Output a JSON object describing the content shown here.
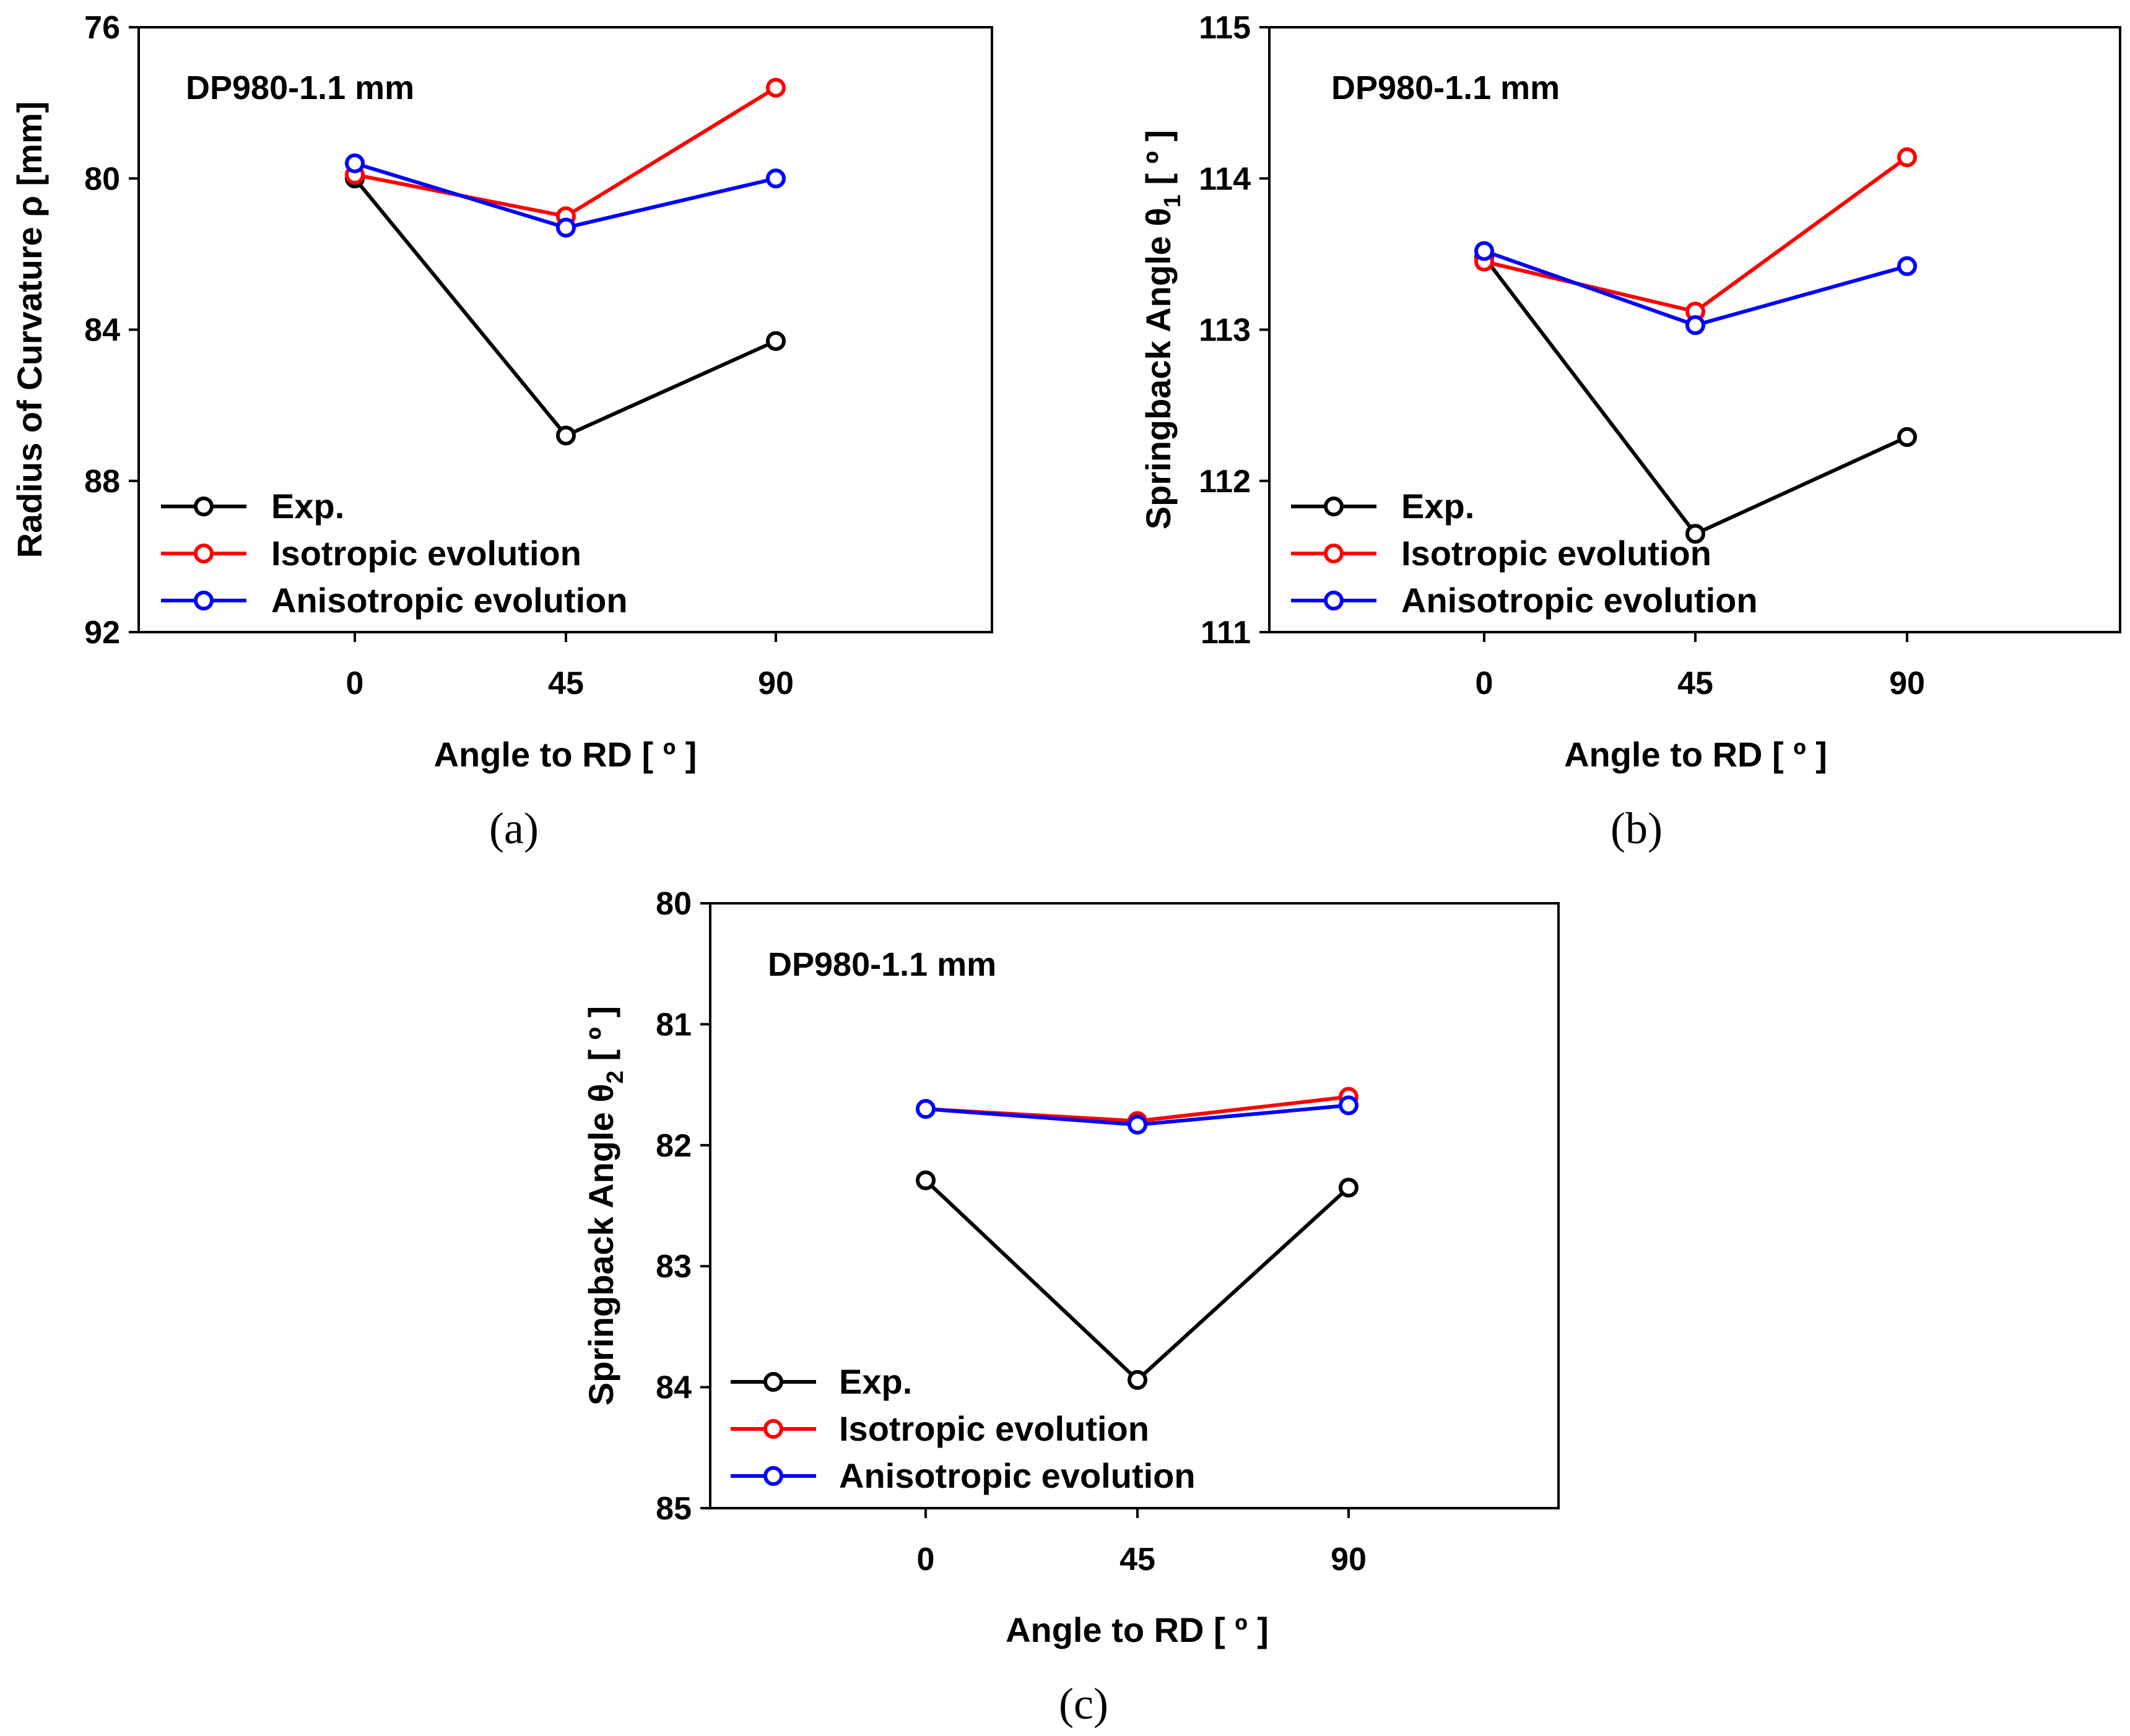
{
  "chart_data": [
    {
      "id": "a",
      "type": "line",
      "caption": "(a)",
      "title": "DP980-1.1 mm",
      "xlabel": "Angle to RD [ º ]",
      "ylabel": "Radius of Curvature ρ [mm]",
      "categories": [
        "0",
        "45",
        "90"
      ],
      "ylim": [
        76,
        92
      ],
      "yticks": [
        "76",
        "80",
        "84",
        "88",
        "92"
      ],
      "y_inverted": true,
      "series": [
        {
          "name": "Exp.",
          "color": "#000000",
          "values": [
            80.0,
            86.8,
            84.3
          ]
        },
        {
          "name": "Isotropic evolution",
          "color": "#ff0000",
          "values": [
            79.9,
            81.0,
            77.6
          ]
        },
        {
          "name": "Anisotropic evolution",
          "color": "#0000ff",
          "values": [
            79.6,
            81.3,
            80.0
          ]
        }
      ]
    },
    {
      "id": "b",
      "type": "line",
      "caption": "(b)",
      "title": "DP980-1.1 mm",
      "xlabel": "Angle to RD [ º ]",
      "ylabel": "Springback Angle θ",
      "ylabel_sub": "1",
      "ylabel_suffix": " [ º ]",
      "categories": [
        "0",
        "45",
        "90"
      ],
      "ylim": [
        111,
        115
      ],
      "yticks": [
        "115",
        "114",
        "113",
        "112",
        "111"
      ],
      "y_inverted": false,
      "series": [
        {
          "name": "Exp.",
          "color": "#000000",
          "values": [
            113.48,
            111.65,
            112.29
          ]
        },
        {
          "name": "Isotropic evolution",
          "color": "#ff0000",
          "values": [
            113.45,
            113.12,
            114.14
          ]
        },
        {
          "name": "Anisotropic evolution",
          "color": "#0000ff",
          "values": [
            113.52,
            113.03,
            113.42
          ]
        }
      ]
    },
    {
      "id": "c",
      "type": "line",
      "caption": "(c)",
      "title": "DP980-1.1 mm",
      "xlabel": "Angle to RD [ º ]",
      "ylabel": "Springback Angle θ",
      "ylabel_sub": "2",
      "ylabel_suffix": " [ º ]",
      "categories": [
        "0",
        "45",
        "90"
      ],
      "ylim": [
        80,
        85
      ],
      "yticks": [
        "80",
        "81",
        "82",
        "83",
        "84",
        "85"
      ],
      "y_inverted": true,
      "series": [
        {
          "name": "Exp.",
          "color": "#000000",
          "values": [
            82.29,
            83.94,
            82.35
          ]
        },
        {
          "name": "Isotropic evolution",
          "color": "#ff0000",
          "values": [
            81.7,
            81.8,
            81.6
          ]
        },
        {
          "name": "Anisotropic evolution",
          "color": "#0000ff",
          "values": [
            81.7,
            81.83,
            81.67
          ]
        }
      ]
    }
  ]
}
